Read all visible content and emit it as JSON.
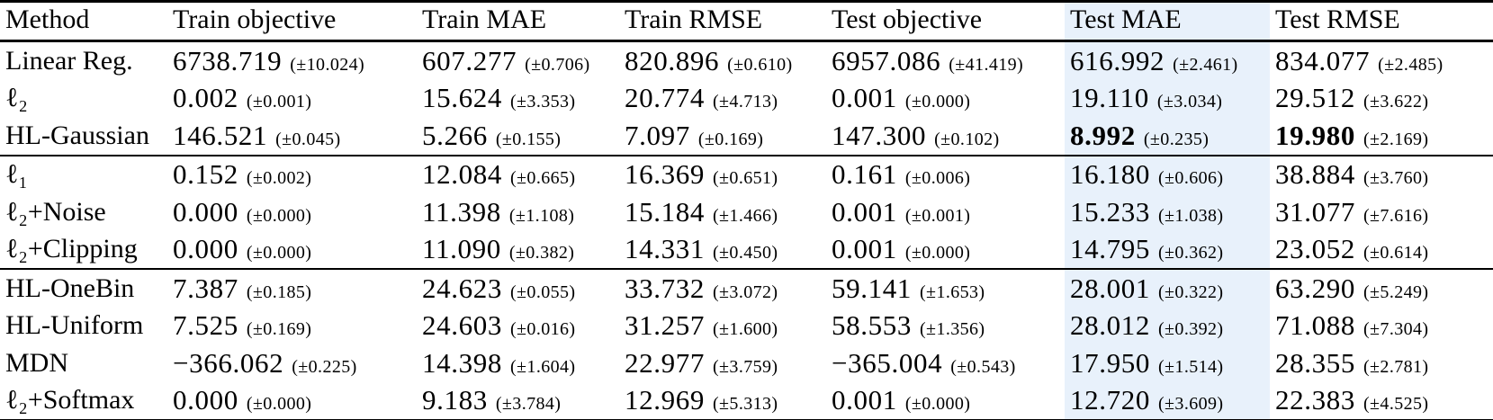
{
  "table": {
    "highlight_color": "#e8f1fb",
    "highlighted_column_index": 5,
    "columns": [
      "Method",
      "Train objective",
      "Train MAE",
      "Train RMSE",
      "Test objective",
      "Test MAE",
      "Test RMSE"
    ],
    "groups": [
      {
        "rows": [
          {
            "method": "Linear Reg.",
            "cells": [
              {
                "v": "6738.719",
                "e": "(±10.024)"
              },
              {
                "v": "607.277",
                "e": "(±0.706)"
              },
              {
                "v": "820.896",
                "e": "(±0.610)"
              },
              {
                "v": "6957.086",
                "e": "(±41.419)"
              },
              {
                "v": "616.992",
                "e": "(±2.461)"
              },
              {
                "v": "834.077",
                "e": "(±2.485)"
              }
            ]
          },
          {
            "method": "ℓ₂",
            "cells": [
              {
                "v": "0.002",
                "e": "(±0.001)"
              },
              {
                "v": "15.624",
                "e": "(±3.353)"
              },
              {
                "v": "20.774",
                "e": "(±4.713)"
              },
              {
                "v": "0.001",
                "e": "(±0.000)"
              },
              {
                "v": "19.110",
                "e": "(±3.034)"
              },
              {
                "v": "29.512",
                "e": "(±3.622)"
              }
            ]
          },
          {
            "method": "HL-Gaussian",
            "cells": [
              {
                "v": "146.521",
                "e": "(±0.045)"
              },
              {
                "v": "5.266",
                "e": "(±0.155)"
              },
              {
                "v": "7.097",
                "e": "(±0.169)"
              },
              {
                "v": "147.300",
                "e": "(±0.102)"
              },
              {
                "v": "8.992",
                "e": "(±0.235)",
                "b": true
              },
              {
                "v": "19.980",
                "e": "(±2.169)",
                "b": true
              }
            ]
          }
        ]
      },
      {
        "rows": [
          {
            "method": "ℓ₁",
            "cells": [
              {
                "v": "0.152",
                "e": "(±0.002)"
              },
              {
                "v": "12.084",
                "e": "(±0.665)"
              },
              {
                "v": "16.369",
                "e": "(±0.651)"
              },
              {
                "v": "0.161",
                "e": "(±0.006)"
              },
              {
                "v": "16.180",
                "e": "(±0.606)"
              },
              {
                "v": "38.884",
                "e": "(±3.760)"
              }
            ]
          },
          {
            "method": "ℓ₂+Noise",
            "cells": [
              {
                "v": "0.000",
                "e": "(±0.000)"
              },
              {
                "v": "11.398",
                "e": "(±1.108)"
              },
              {
                "v": "15.184",
                "e": "(±1.466)"
              },
              {
                "v": "0.001",
                "e": "(±0.001)"
              },
              {
                "v": "15.233",
                "e": "(±1.038)"
              },
              {
                "v": "31.077",
                "e": "(±7.616)"
              }
            ]
          },
          {
            "method": "ℓ₂+Clipping",
            "cells": [
              {
                "v": "0.000",
                "e": "(±0.000)"
              },
              {
                "v": "11.090",
                "e": "(±0.382)"
              },
              {
                "v": "14.331",
                "e": "(±0.450)"
              },
              {
                "v": "0.001",
                "e": "(±0.000)"
              },
              {
                "v": "14.795",
                "e": "(±0.362)"
              },
              {
                "v": "23.052",
                "e": "(±0.614)"
              }
            ]
          }
        ]
      },
      {
        "rows": [
          {
            "method": "HL-OneBin",
            "cells": [
              {
                "v": "7.387",
                "e": "(±0.185)"
              },
              {
                "v": "24.623",
                "e": "(±0.055)"
              },
              {
                "v": "33.732",
                "e": "(±3.072)"
              },
              {
                "v": "59.141",
                "e": "(±1.653)"
              },
              {
                "v": "28.001",
                "e": "(±0.322)"
              },
              {
                "v": "63.290",
                "e": "(±5.249)"
              }
            ]
          },
          {
            "method": "HL-Uniform",
            "cells": [
              {
                "v": "7.525",
                "e": "(±0.169)"
              },
              {
                "v": "24.603",
                "e": "(±0.016)"
              },
              {
                "v": "31.257",
                "e": "(±1.600)"
              },
              {
                "v": "58.553",
                "e": "(±1.356)"
              },
              {
                "v": "28.012",
                "e": "(±0.392)"
              },
              {
                "v": "71.088",
                "e": "(±7.304)"
              }
            ]
          },
          {
            "method": "MDN",
            "cells": [
              {
                "v": "−366.062",
                "e": "(±0.225)"
              },
              {
                "v": "14.398",
                "e": "(±1.604)"
              },
              {
                "v": "22.977",
                "e": "(±3.759)"
              },
              {
                "v": "−365.004",
                "e": "(±0.543)"
              },
              {
                "v": "17.950",
                "e": "(±1.514)"
              },
              {
                "v": "28.355",
                "e": "(±2.781)"
              }
            ]
          },
          {
            "method": "ℓ₂+Softmax",
            "cells": [
              {
                "v": "0.000",
                "e": "(±0.000)"
              },
              {
                "v": "9.183",
                "e": "(±3.784)"
              },
              {
                "v": "12.969",
                "e": "(±5.313)"
              },
              {
                "v": "0.001",
                "e": "(±0.000)"
              },
              {
                "v": "12.720",
                "e": "(±3.609)"
              },
              {
                "v": "22.383",
                "e": "(±4.525)"
              }
            ]
          }
        ]
      }
    ]
  }
}
